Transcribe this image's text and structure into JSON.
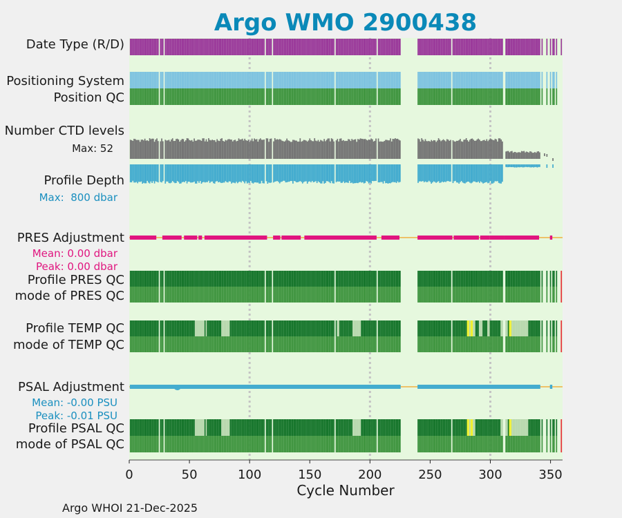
{
  "colors": {
    "background": "#f0f0f0",
    "plot_bg": "#e6f8de",
    "title": "#0a89b8",
    "data_type": "#9b3a9b",
    "positioning": "#7ec3e0",
    "qc_good": "#419641",
    "qc_dark": "#17762c",
    "qc_light": "#b8d8ae",
    "qc_yellow": "#f0f030",
    "qc_red": "#e8303a",
    "ctd": "#757575",
    "depth": "#44accf",
    "pres_adj": "#e0157f",
    "psal_adj": "#44accf",
    "zero_line": "#f0b040",
    "grid": "#c4c4c4"
  },
  "chart_data": {
    "type": "timeline",
    "title": "Argo WMO 2900438",
    "xlabel": "Cycle Number",
    "xlim": [
      0,
      360
    ],
    "xticks": [
      0,
      50,
      100,
      150,
      200,
      250,
      300,
      350
    ],
    "xtick_labels": [
      "0",
      "50",
      "100",
      "150",
      "200",
      "250",
      "300",
      "350"
    ],
    "vgrid": [
      100,
      200,
      300
    ],
    "footer": "Argo WHOI 21-Dec-2025",
    "gaps": [
      [
        25,
        26
      ],
      [
        29,
        30
      ],
      [
        113,
        114
      ],
      [
        119,
        120
      ],
      [
        171,
        172
      ],
      [
        206,
        207
      ],
      [
        226,
        240
      ],
      [
        268,
        269
      ],
      [
        311,
        313
      ],
      [
        342,
        343
      ],
      [
        344,
        347
      ],
      [
        348,
        350
      ],
      [
        351,
        352
      ],
      [
        354,
        355
      ],
      [
        356,
        359
      ]
    ],
    "rows": [
      {
        "key": "data_type",
        "label": "Date Type (R/D)"
      },
      {
        "key": "positioning",
        "label": "Positioning System"
      },
      {
        "key": "position_qc",
        "label": "Position QC"
      },
      {
        "key": "ctd_levels",
        "label": "Number CTD levels",
        "stat": "Max: 52"
      },
      {
        "key": "profile_depth",
        "label": "Profile Depth",
        "stat": "Max:  800 dbar"
      },
      {
        "key": "pres_adjustment",
        "label": "PRES Adjustment",
        "stats": [
          "Mean: 0.00 dbar",
          "Peak: 0.00 dbar"
        ]
      },
      {
        "key": "profile_pres_qc",
        "label": "Profile PRES QC"
      },
      {
        "key": "mode_pres_qc",
        "label": "mode of PRES QC"
      },
      {
        "key": "profile_temp_qc",
        "label": "Profile TEMP QC"
      },
      {
        "key": "mode_temp_qc",
        "label": "mode of TEMP QC"
      },
      {
        "key": "psal_adjustment",
        "label": "PSAL Adjustment",
        "stats": [
          "Mean: -0.00 PSU",
          "Peak: -0.01 PSU"
        ]
      },
      {
        "key": "profile_psal_qc",
        "label": "Profile PSAL QC"
      },
      {
        "key": "mode_psal_qc",
        "label": "mode of PSAL QC"
      }
    ],
    "ctd_max": 52,
    "depth_max_dbar": 800,
    "ctd_regime": [
      {
        "from": 1,
        "to": 225,
        "min": 25,
        "max": 52
      },
      {
        "from": 240,
        "to": 310,
        "min": 25,
        "max": 52
      },
      {
        "from": 313,
        "to": 341,
        "min": 5,
        "max": 20
      }
    ],
    "depth_regime": [
      {
        "from": 1,
        "to": 225,
        "min": 450,
        "max": 800
      },
      {
        "from": 240,
        "to": 310,
        "min": 450,
        "max": 800
      },
      {
        "from": 313,
        "to": 341,
        "min": 60,
        "max": 130
      }
    ],
    "pres_adjustment_mean": 0.0,
    "pres_adjustment_peak": 0.0,
    "pres_adjustment_segments": [
      [
        1,
        22
      ],
      [
        28,
        43
      ],
      [
        46,
        56
      ],
      [
        58,
        60
      ],
      [
        63,
        114
      ],
      [
        120,
        125
      ],
      [
        127,
        142
      ],
      [
        146,
        205
      ],
      [
        210,
        224
      ],
      [
        240,
        268
      ],
      [
        270,
        290
      ],
      [
        292,
        299
      ],
      [
        300,
        311
      ],
      [
        312,
        340
      ],
      [
        350,
        351
      ]
    ],
    "psal_adjustment_mean": -0.0,
    "psal_adjustment_peak": -0.01,
    "psal_adjustment_segments": [
      [
        1,
        225
      ],
      [
        240,
        341
      ],
      [
        350,
        351
      ]
    ],
    "temp_qc_light_cycles": [
      55,
      56,
      57,
      58,
      59,
      60,
      61,
      62,
      64,
      77,
      78,
      79,
      80,
      81,
      82,
      83,
      173,
      174,
      186,
      187,
      188,
      189,
      190,
      191,
      192,
      282,
      283,
      286,
      287,
      291,
      292,
      293,
      298,
      299,
      309,
      310,
      311,
      312,
      313,
      314,
      316,
      318,
      319,
      320,
      321,
      322,
      323,
      324,
      325,
      326,
      327,
      328,
      329,
      330,
      331
    ],
    "temp_qc_yellow_cycles": [
      281,
      282,
      284,
      285,
      316,
      317
    ],
    "psal_qc_light_cycles": [
      55,
      56,
      57,
      58,
      59,
      60,
      61,
      62,
      64,
      77,
      78,
      79,
      80,
      81,
      82,
      83,
      186,
      187,
      188,
      189,
      190,
      191,
      192,
      282,
      283,
      286,
      287,
      309,
      310,
      311,
      312,
      313,
      314,
      316,
      318,
      319,
      320,
      321,
      322,
      323,
      324,
      325,
      326,
      327,
      328,
      329,
      330,
      331
    ],
    "psal_qc_yellow_cycles": [
      281,
      282,
      284,
      285,
      316,
      317
    ],
    "red_cycles": [
      359
    ]
  }
}
